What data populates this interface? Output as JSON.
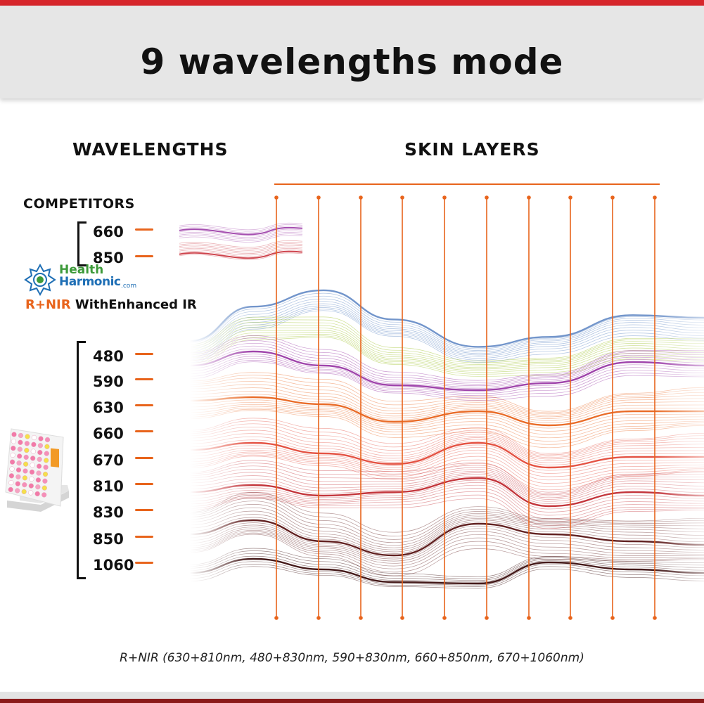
{
  "header": {
    "title": "9 wavelengths mode"
  },
  "sections": {
    "wavelengths_title": "WAVELENGTHS",
    "skin_layers_title": "SKIN LAYERS"
  },
  "competitors": {
    "label": "COMPETITORS",
    "wavelengths": [
      "660",
      "850"
    ]
  },
  "brand": {
    "name_line1": "Health",
    "name_line2": "Harmonic",
    "domain_suffix": ".com"
  },
  "product_label": {
    "accent": "R+NIR",
    "rest": "WithEnhanced IR"
  },
  "product_wavelengths": [
    "480",
    "590",
    "630",
    "660",
    "670",
    "810",
    "830",
    "850",
    "1060"
  ],
  "caption": "R+NIR (630+810nm,  480+830nm,  590+830nm,  660+850nm,  670+1060nm)",
  "colors": {
    "accent_orange": "#e8641c",
    "top_bar_red": "#d7262b",
    "header_gray": "#e6e6e6"
  },
  "icons": {
    "brand_logo": "mandala-logo-icon",
    "device": "led-light-panel-icon"
  }
}
